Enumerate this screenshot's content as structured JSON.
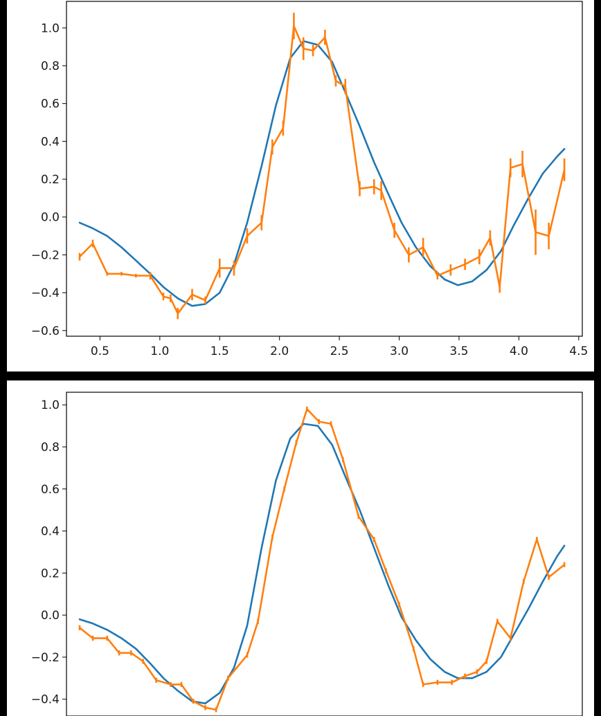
{
  "chart_data": [
    {
      "type": "line",
      "title": "",
      "xlabel": "",
      "ylabel": "",
      "xlim": [
        0.22,
        4.53
      ],
      "ylim": [
        -0.63,
        1.14
      ],
      "x_ticks": [
        0.5,
        1.0,
        1.5,
        2.0,
        2.5,
        3.0,
        3.5,
        4.0,
        4.5
      ],
      "x_tick_labels": [
        "0.5",
        "1.0",
        "1.5",
        "2.0",
        "2.5",
        "3.0",
        "3.5",
        "4.0",
        "4.5"
      ],
      "y_ticks": [
        1.0,
        0.8,
        0.6,
        0.4,
        0.2,
        0.0,
        -0.2,
        -0.4,
        -0.6
      ],
      "y_tick_labels": [
        "1.0",
        "0.8",
        "0.6",
        "0.4",
        "0.2",
        "0.0",
        "−0.2",
        "−0.4",
        "−0.6"
      ],
      "grid": false,
      "series": [
        {
          "color": "#1f77b4",
          "x": [
            0.33,
            0.44,
            0.56,
            0.68,
            0.8,
            0.92,
            1.03,
            1.15,
            1.27,
            1.38,
            1.5,
            1.62,
            1.73,
            1.85,
            1.97,
            2.09,
            2.2,
            2.32,
            2.44,
            2.55,
            2.67,
            2.79,
            2.91,
            3.02,
            3.14,
            3.26,
            3.38,
            3.49,
            3.61,
            3.73,
            3.85,
            3.96,
            4.08,
            4.2,
            4.32,
            4.38
          ],
          "y": [
            -0.03,
            -0.06,
            -0.1,
            -0.16,
            -0.23,
            -0.3,
            -0.37,
            -0.43,
            -0.47,
            -0.46,
            -0.4,
            -0.25,
            -0.03,
            0.27,
            0.59,
            0.84,
            0.93,
            0.91,
            0.82,
            0.66,
            0.48,
            0.29,
            0.12,
            -0.03,
            -0.16,
            -0.26,
            -0.33,
            -0.36,
            -0.34,
            -0.28,
            -0.18,
            -0.04,
            0.1,
            0.23,
            0.32,
            0.36
          ]
        },
        {
          "color": "#ff7f0e",
          "x": [
            0.33,
            0.44,
            0.56,
            0.68,
            0.8,
            0.92,
            1.03,
            1.09,
            1.15,
            1.27,
            1.38,
            1.5,
            1.62,
            1.73,
            1.85,
            1.94,
            2.03,
            2.12,
            2.2,
            2.28,
            2.38,
            2.47,
            2.55,
            2.67,
            2.79,
            2.85,
            2.96,
            3.08,
            3.2,
            3.32,
            3.43,
            3.55,
            3.67,
            3.76,
            3.84,
            3.93,
            4.03,
            4.14,
            4.25,
            4.38
          ],
          "y": [
            -0.21,
            -0.14,
            -0.3,
            -0.3,
            -0.31,
            -0.31,
            -0.42,
            -0.43,
            -0.51,
            -0.41,
            -0.44,
            -0.27,
            -0.27,
            -0.1,
            -0.03,
            0.37,
            0.47,
            1.01,
            0.89,
            0.88,
            0.95,
            0.72,
            0.69,
            0.15,
            0.16,
            0.14,
            -0.07,
            -0.2,
            -0.16,
            -0.31,
            -0.28,
            -0.25,
            -0.21,
            -0.11,
            -0.37,
            0.26,
            0.28,
            -0.08,
            -0.1,
            0.25
          ],
          "yerr": [
            0.02,
            0.02,
            0.01,
            0.01,
            0.01,
            0.02,
            0.02,
            0.02,
            0.03,
            0.03,
            0.02,
            0.05,
            0.04,
            0.04,
            0.04,
            0.04,
            0.04,
            0.07,
            0.06,
            0.03,
            0.04,
            0.03,
            0.04,
            0.04,
            0.04,
            0.05,
            0.04,
            0.04,
            0.05,
            0.02,
            0.03,
            0.03,
            0.04,
            0.04,
            0.03,
            0.05,
            0.07,
            0.12,
            0.07,
            0.06
          ]
        }
      ]
    },
    {
      "type": "line",
      "title": "",
      "xlabel": "",
      "ylabel": "",
      "xlim": [
        0.22,
        4.53
      ],
      "ylim": [
        -0.48,
        1.06
      ],
      "y_ticks": [
        1.0,
        0.8,
        0.6,
        0.4,
        0.2,
        0.0,
        -0.2,
        -0.4
      ],
      "y_tick_labels": [
        "1.0",
        "0.8",
        "0.6",
        "0.4",
        "0.2",
        "0.0",
        "−0.2",
        "−0.4"
      ],
      "grid": false,
      "series": [
        {
          "color": "#1f77b4",
          "x": [
            0.33,
            0.44,
            0.56,
            0.68,
            0.8,
            0.92,
            1.03,
            1.15,
            1.27,
            1.38,
            1.5,
            1.62,
            1.73,
            1.85,
            1.97,
            2.09,
            2.2,
            2.32,
            2.44,
            2.55,
            2.67,
            2.79,
            2.91,
            3.02,
            3.14,
            3.26,
            3.38,
            3.49,
            3.61,
            3.73,
            3.85,
            3.96,
            4.08,
            4.2,
            4.32,
            4.38
          ],
          "y": [
            -0.02,
            -0.04,
            -0.07,
            -0.11,
            -0.16,
            -0.23,
            -0.3,
            -0.36,
            -0.41,
            -0.42,
            -0.37,
            -0.25,
            -0.05,
            0.32,
            0.64,
            0.84,
            0.91,
            0.9,
            0.81,
            0.66,
            0.5,
            0.32,
            0.14,
            -0.01,
            -0.12,
            -0.21,
            -0.27,
            -0.3,
            -0.3,
            -0.27,
            -0.2,
            -0.09,
            0.03,
            0.16,
            0.28,
            0.33
          ]
        },
        {
          "color": "#ff7f0e",
          "x": [
            0.33,
            0.44,
            0.56,
            0.66,
            0.76,
            0.86,
            0.97,
            1.09,
            1.18,
            1.28,
            1.38,
            1.47,
            1.57,
            1.73,
            1.82,
            1.94,
            2.04,
            2.14,
            2.23,
            2.33,
            2.43,
            2.53,
            2.66,
            2.79,
            2.89,
            3.0,
            3.12,
            3.2,
            3.32,
            3.44,
            3.55,
            3.65,
            3.73,
            3.82,
            3.93,
            4.04,
            4.15,
            4.25,
            4.38
          ],
          "y": [
            -0.06,
            -0.11,
            -0.11,
            -0.18,
            -0.18,
            -0.22,
            -0.31,
            -0.33,
            -0.33,
            -0.41,
            -0.44,
            -0.45,
            -0.3,
            -0.19,
            -0.03,
            0.37,
            0.6,
            0.82,
            0.98,
            0.92,
            0.91,
            0.74,
            0.47,
            0.36,
            0.21,
            0.05,
            -0.16,
            -0.33,
            -0.32,
            -0.32,
            -0.29,
            -0.27,
            -0.22,
            -0.03,
            -0.11,
            0.16,
            0.36,
            0.18,
            0.24
          ]
        }
      ]
    }
  ]
}
